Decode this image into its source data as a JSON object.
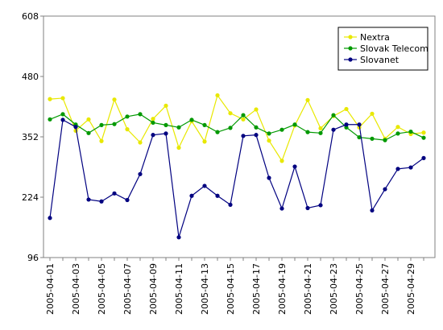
{
  "chart_data": {
    "type": "line",
    "title": "",
    "xlabel": "",
    "ylabel": "",
    "ylim": [
      96,
      608
    ],
    "y_ticks": [
      96,
      224,
      352,
      480,
      608
    ],
    "grid": false,
    "legend_position": "top-right",
    "x": [
      "2005-04-01",
      "2005-04-02",
      "2005-04-03",
      "2005-04-04",
      "2005-04-05",
      "2005-04-06",
      "2005-04-07",
      "2005-04-08",
      "2005-04-09",
      "2005-04-10",
      "2005-04-11",
      "2005-04-12",
      "2005-04-13",
      "2005-04-14",
      "2005-04-15",
      "2005-04-16",
      "2005-04-17",
      "2005-04-18",
      "2005-04-19",
      "2005-04-20",
      "2005-04-21",
      "2005-04-22",
      "2005-04-23",
      "2005-04-24",
      "2005-04-25",
      "2005-04-26",
      "2005-04-27",
      "2005-04-28",
      "2005-04-29",
      "2005-04-30"
    ],
    "x_tick_labels": [
      "2005-04-01",
      "2005-04-03",
      "2005-04-05",
      "2005-04-07",
      "2005-04-09",
      "2005-04-11",
      "2005-04-13",
      "2005-04-15",
      "2005-04-17",
      "2005-04-19",
      "2005-04-21",
      "2005-04-23",
      "2005-04-25",
      "2005-04-27",
      "2005-04-29"
    ],
    "series": [
      {
        "name": "Nextra",
        "color": "#e8e800",
        "values": [
          432,
          434,
          365,
          389,
          343,
          431,
          368,
          340,
          390,
          418,
          329,
          385,
          342,
          440,
          402,
          389,
          410,
          344,
          301,
          376,
          430,
          370,
          396,
          411,
          372,
          401,
          348,
          373,
          358,
          361
        ]
      },
      {
        "name": "Slovak Telecom",
        "color": "#009900",
        "values": [
          389,
          400,
          378,
          360,
          377,
          379,
          395,
          400,
          382,
          377,
          372,
          388,
          377,
          362,
          371,
          398,
          372,
          359,
          367,
          378,
          362,
          360,
          398,
          372,
          351,
          348,
          345,
          359,
          363,
          350
        ]
      },
      {
        "name": "Slovanet",
        "color": "#000080",
        "values": [
          180,
          388,
          373,
          219,
          215,
          232,
          218,
          273,
          356,
          359,
          139,
          227,
          248,
          227,
          208,
          354,
          356,
          265,
          200,
          289,
          201,
          207,
          367,
          378,
          378,
          196,
          241,
          284,
          287,
          307
        ]
      }
    ]
  }
}
